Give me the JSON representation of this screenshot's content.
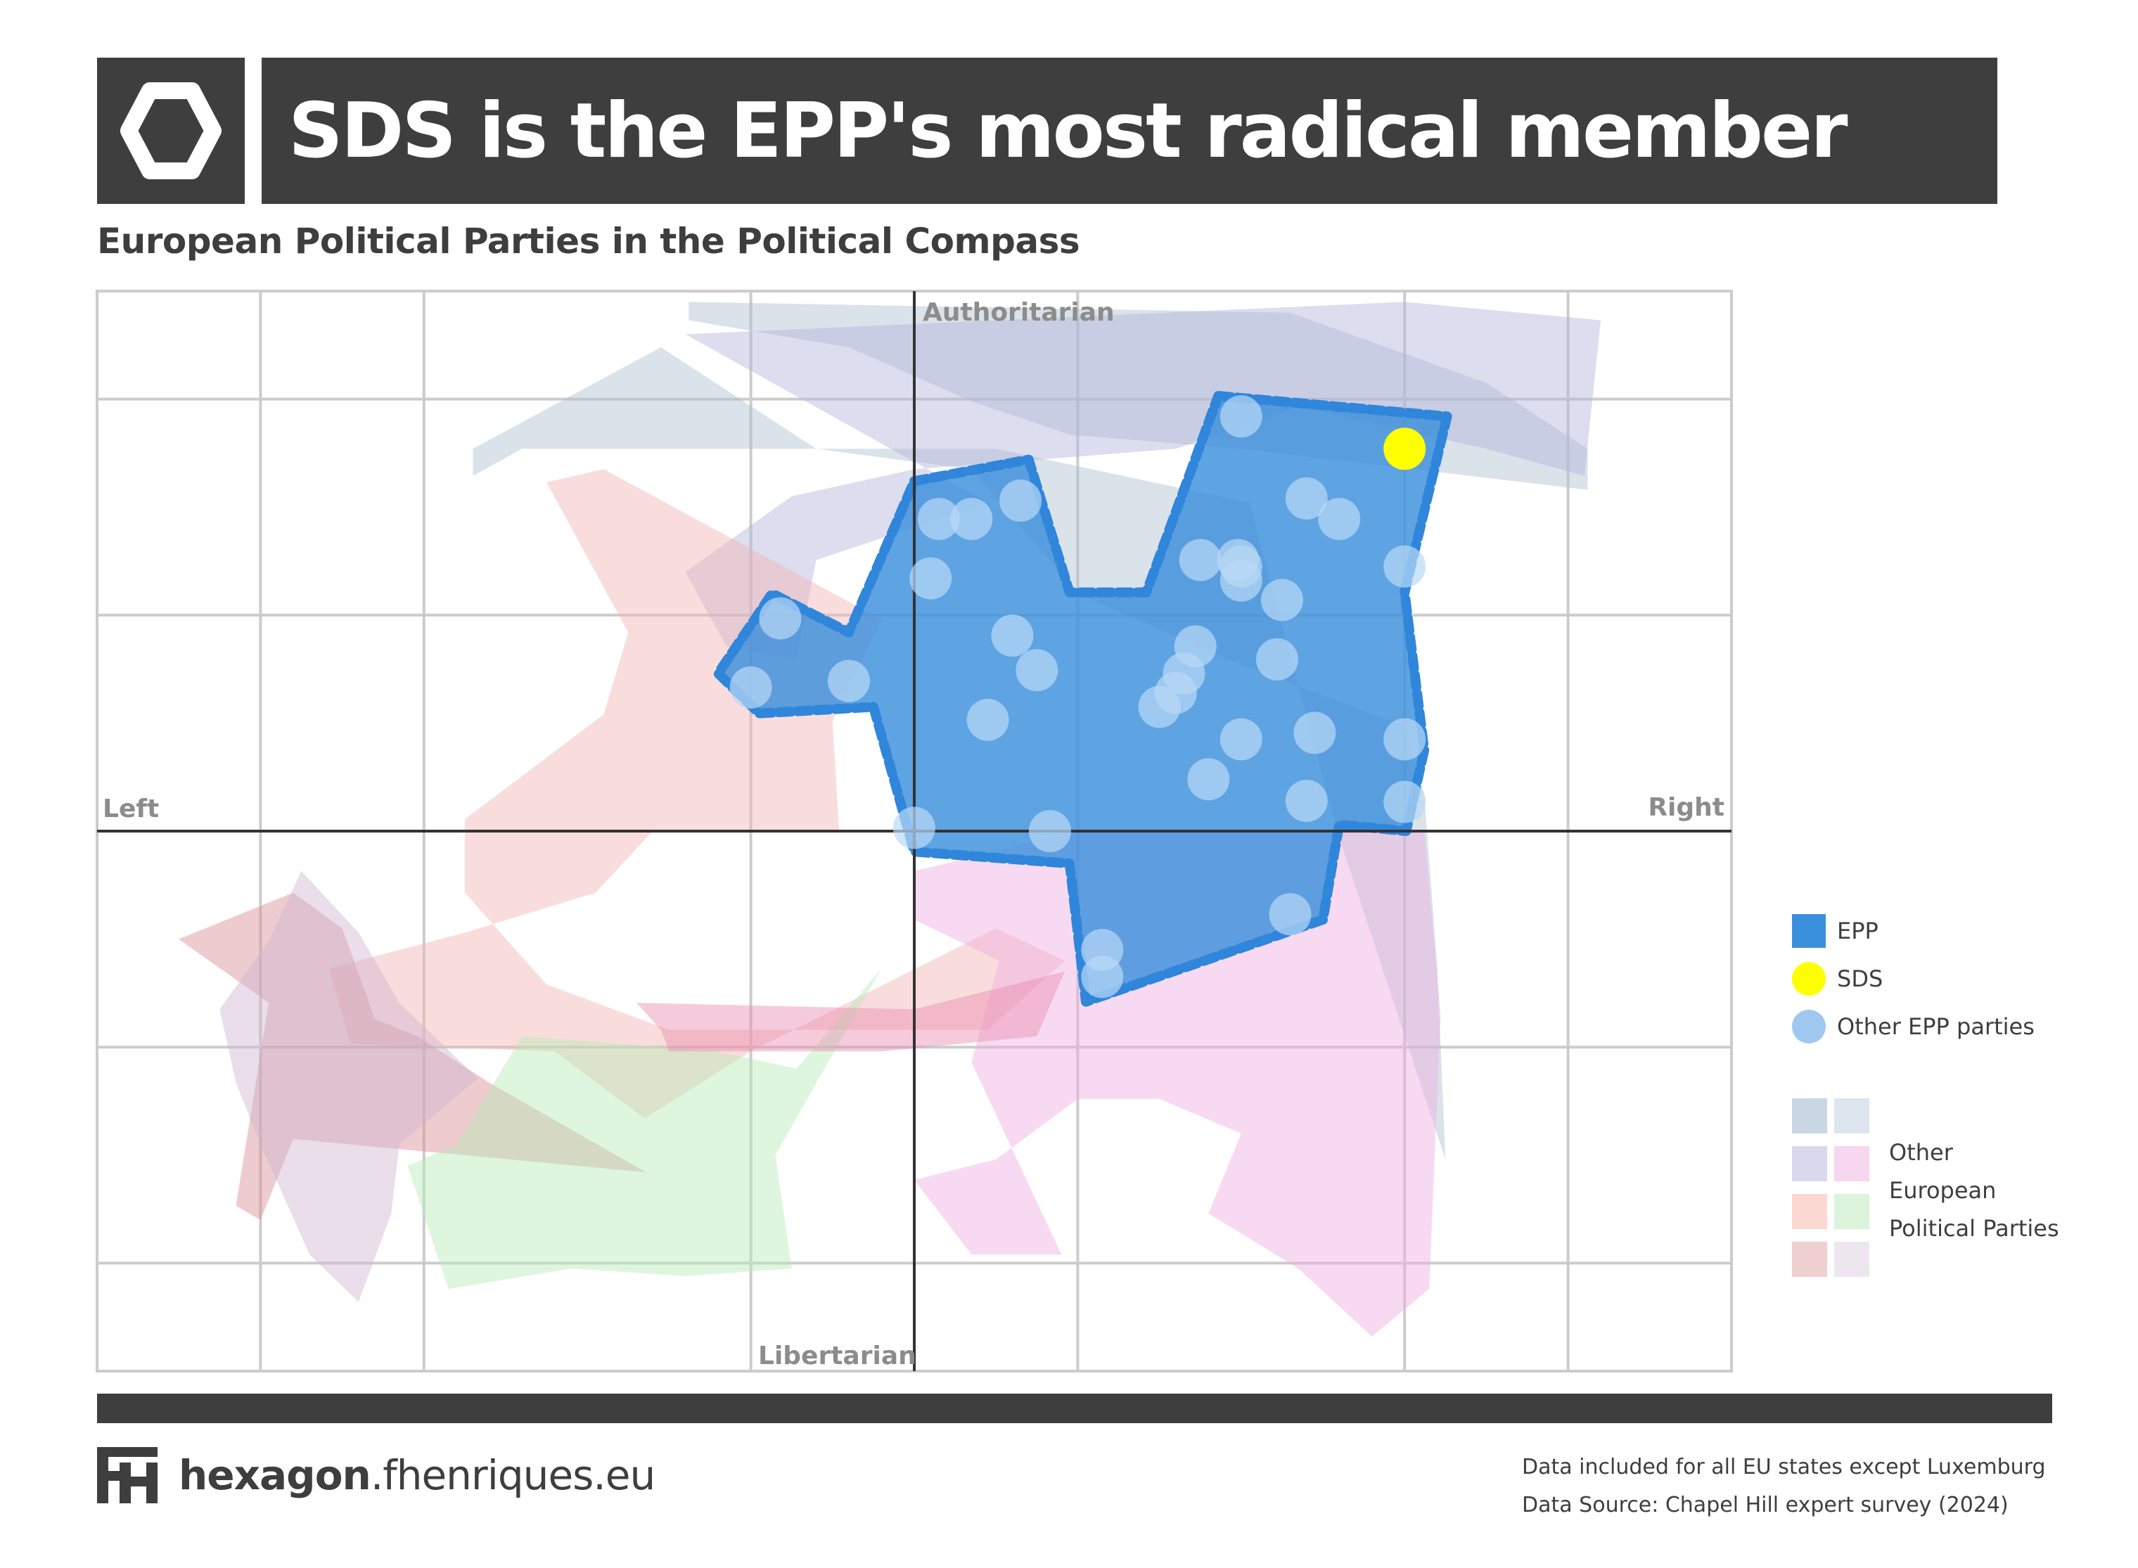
{
  "header": {
    "icon": "hexagon-icon",
    "title": "SDS is the EPP's most radical member"
  },
  "subtitle": "European Political Parties in the Political Compass",
  "chart_data": {
    "type": "scatter",
    "axes": {
      "left": "Left",
      "right": "Right",
      "top": "Authoritarian",
      "bottom": "Libertarian"
    },
    "xlim": [
      -5,
      5
    ],
    "ylim": [
      -5,
      5
    ],
    "grid": true,
    "legend_position": "right",
    "colors": {
      "epp": "#3a8fdc",
      "sds": "#ffff00",
      "other_epp": "#9fc8f0",
      "grid": "#cccccc",
      "axis": "#333333",
      "frame": "#cccccc"
    },
    "series": [
      {
        "name": "SDS",
        "points": [
          [
            3.0,
            3.54
          ]
        ]
      },
      {
        "name": "Other EPP parties",
        "points": [
          [
            2.0,
            3.84
          ],
          [
            2.4,
            3.08
          ],
          [
            2.6,
            2.89
          ],
          [
            3.0,
            2.45
          ],
          [
            2.25,
            2.14
          ],
          [
            1.75,
            2.51
          ],
          [
            1.98,
            2.51
          ],
          [
            2.0,
            2.45
          ],
          [
            2.0,
            2.32
          ],
          [
            2.22,
            1.59
          ],
          [
            1.5,
            1.15
          ],
          [
            1.72,
            1.71
          ],
          [
            1.65,
            1.46
          ],
          [
            1.6,
            1.28
          ],
          [
            2.45,
            0.91
          ],
          [
            2.4,
            0.28
          ],
          [
            3.0,
            0.85
          ],
          [
            1.8,
            0.48
          ],
          [
            2.0,
            0.85
          ],
          [
            3.0,
            0.27
          ],
          [
            0.15,
            2.89
          ],
          [
            0.35,
            2.89
          ],
          [
            0.65,
            3.06
          ],
          [
            0.1,
            2.34
          ],
          [
            0.6,
            1.81
          ],
          [
            0.75,
            1.49
          ],
          [
            0.45,
            1.03
          ],
          [
            -0.82,
            1.97
          ],
          [
            -1.0,
            1.33
          ],
          [
            -0.4,
            1.39
          ],
          [
            0.0,
            0.03
          ],
          [
            0.83,
            0.0
          ],
          [
            2.3,
            -0.77
          ],
          [
            1.15,
            -1.1
          ],
          [
            1.15,
            -1.35
          ]
        ]
      }
    ],
    "epp_area": [
      [
        1.86,
        4.03
      ],
      [
        3.26,
        3.84
      ],
      [
        3.0,
        2.21
      ],
      [
        3.12,
        0.75
      ],
      [
        3.01,
        0.0
      ],
      [
        2.6,
        0.06
      ],
      [
        2.5,
        -0.82
      ],
      [
        1.05,
        -1.58
      ],
      [
        0.95,
        -0.3
      ],
      [
        0.0,
        -0.19
      ],
      [
        -0.25,
        1.15
      ],
      [
        -0.95,
        1.09
      ],
      [
        -1.2,
        1.46
      ],
      [
        -0.87,
        2.2
      ],
      [
        -0.4,
        1.84
      ],
      [
        0.0,
        3.24
      ],
      [
        0.7,
        3.44
      ],
      [
        0.95,
        2.21
      ],
      [
        1.42,
        2.21
      ]
    ],
    "other_party_areas": [
      {
        "color": "#aebfd1",
        "points": [
          [
            -1.38,
            4.9
          ],
          [
            2.3,
            4.8
          ],
          [
            3.5,
            4.15
          ],
          [
            4.12,
            3.54
          ],
          [
            4.12,
            3.16
          ],
          [
            2.0,
            3.54
          ],
          [
            0.95,
            3.67
          ],
          [
            0.35,
            3.98
          ],
          [
            -0.4,
            4.48
          ],
          [
            -1.38,
            4.73
          ]
        ]
      },
      {
        "color": "#aebfd1",
        "points": [
          [
            -2.7,
            3.54
          ],
          [
            -1.55,
            4.48
          ],
          [
            -0.6,
            3.54
          ],
          [
            0.35,
            3.35
          ],
          [
            1.0,
            2.2
          ],
          [
            1.92,
            1.59
          ],
          [
            3.0,
            0.97
          ],
          [
            3.12,
            0.34
          ],
          [
            3.2,
            -1.27
          ],
          [
            3.25,
            -3.04
          ],
          [
            2.6,
            -0.06
          ],
          [
            2.05,
            3.04
          ],
          [
            0.5,
            3.54
          ],
          [
            -2.4,
            3.54
          ],
          [
            -2.7,
            3.29
          ]
        ]
      },
      {
        "color": "#b1b4dc",
        "points": [
          [
            -1.4,
            4.6
          ],
          [
            3.0,
            4.9
          ],
          [
            4.2,
            4.73
          ],
          [
            4.1,
            3.29
          ],
          [
            3.5,
            3.54
          ],
          [
            2.35,
            3.93
          ],
          [
            1.6,
            3.54
          ],
          [
            0.0,
            3.35
          ],
          [
            -0.75,
            3.1
          ],
          [
            -1.4,
            2.4
          ],
          [
            -1.15,
            1.71
          ],
          [
            -0.72,
            1.59
          ],
          [
            -0.6,
            2.51
          ],
          [
            0.45,
            3.04
          ]
        ]
      },
      {
        "color": "#f2b4b4",
        "points": [
          [
            -2.25,
            3.23
          ],
          [
            -1.9,
            3.35
          ],
          [
            -0.2,
            1.96
          ],
          [
            -0.5,
            1.02
          ],
          [
            -0.46,
            0.0
          ],
          [
            -1.6,
            0.0
          ],
          [
            -1.95,
            -0.57
          ],
          [
            -2.75,
            -0.94
          ],
          [
            -3.58,
            -1.27
          ],
          [
            -3.45,
            -1.97
          ],
          [
            -2.2,
            -2.04
          ],
          [
            -1.65,
            -2.66
          ],
          [
            -1.0,
            -2.04
          ],
          [
            0.5,
            -0.9
          ],
          [
            0.92,
            -1.2
          ],
          [
            0.45,
            -1.84
          ],
          [
            -1.5,
            -1.84
          ],
          [
            -2.25,
            -1.42
          ],
          [
            -2.75,
            -0.57
          ],
          [
            -2.75,
            0.11
          ],
          [
            -1.9,
            1.08
          ],
          [
            -1.75,
            1.84
          ]
        ]
      },
      {
        "color": "#d98c94",
        "points": [
          [
            -4.5,
            -1.0
          ],
          [
            -3.8,
            -0.57
          ],
          [
            -3.5,
            -0.9
          ],
          [
            -3.3,
            -1.74
          ],
          [
            -3.04,
            -1.9
          ],
          [
            -2.6,
            -2.33
          ],
          [
            -1.64,
            -3.16
          ],
          [
            -3.8,
            -2.85
          ],
          [
            -4.0,
            -3.6
          ],
          [
            -4.15,
            -3.47
          ],
          [
            -3.95,
            -1.59
          ]
        ]
      },
      {
        "color": "#cfb6cf",
        "points": [
          [
            -3.75,
            -0.37
          ],
          [
            -3.4,
            -0.94
          ],
          [
            -3.15,
            -1.59
          ],
          [
            -2.67,
            -2.29
          ],
          [
            -3.15,
            -2.9
          ],
          [
            -3.2,
            -3.54
          ],
          [
            -3.4,
            -4.36
          ],
          [
            -3.7,
            -3.92
          ],
          [
            -4.0,
            -2.9
          ],
          [
            -4.15,
            -2.33
          ],
          [
            -4.25,
            -1.65
          ],
          [
            -3.95,
            -1.02
          ]
        ]
      },
      {
        "color": "#b6eab6",
        "points": [
          [
            -2.4,
            -1.9
          ],
          [
            -1.2,
            -2.04
          ],
          [
            -0.72,
            -2.2
          ],
          [
            -0.2,
            -1.27
          ],
          [
            -0.85,
            -3.0
          ],
          [
            -0.75,
            -4.05
          ],
          [
            -1.4,
            -4.12
          ],
          [
            -2.1,
            -4.05
          ],
          [
            -2.85,
            -4.24
          ],
          [
            -3.1,
            -3.1
          ],
          [
            -2.8,
            -2.9
          ]
        ]
      },
      {
        "color": "#eeaee0",
        "points": [
          [
            0.0,
            -0.37
          ],
          [
            0.5,
            -0.19
          ],
          [
            0.95,
            0.0
          ],
          [
            2.2,
            0.0
          ],
          [
            3.12,
            0.0
          ],
          [
            3.22,
            -1.71
          ],
          [
            3.15,
            -4.24
          ],
          [
            2.8,
            -4.68
          ],
          [
            2.35,
            -4.05
          ],
          [
            1.8,
            -3.54
          ],
          [
            2.0,
            -2.8
          ],
          [
            1.5,
            -2.48
          ],
          [
            1.0,
            -2.48
          ],
          [
            0.5,
            -3.04
          ],
          [
            0.0,
            -3.23
          ],
          [
            0.35,
            -3.92
          ],
          [
            0.9,
            -3.92
          ],
          [
            0.35,
            -2.14
          ],
          [
            0.52,
            -1.2
          ],
          [
            0.0,
            -0.82
          ]
        ]
      },
      {
        "color": "#e88bb0",
        "points": [
          [
            -1.7,
            -1.59
          ],
          [
            0.0,
            -1.65
          ],
          [
            0.92,
            -1.3
          ],
          [
            0.75,
            -1.9
          ],
          [
            -0.2,
            -2.04
          ],
          [
            -0.55,
            -2.04
          ],
          [
            -1.5,
            -2.04
          ],
          [
            -1.55,
            -1.84
          ]
        ]
      }
    ]
  },
  "legend": {
    "epp": "EPP",
    "sds": "SDS",
    "other_epp": "Other EPP parties",
    "other_line1": "Other",
    "other_line2": "European",
    "other_line3": "Political Parties",
    "other_colors": [
      "#c9d6e3",
      "#dde6ee",
      "#d8d9ee",
      "#f7d6ef",
      "#fcd8d3",
      "#dcf3dc",
      "#efcfcf",
      "#ede6ef"
    ]
  },
  "footer": {
    "brand_bold": "hexagon",
    "brand_rest": ".fhenriques.eu",
    "note1": "Data included for all EU states except Luxemburg",
    "note2": "Data Source: Chapel Hill expert survey (2024)"
  }
}
